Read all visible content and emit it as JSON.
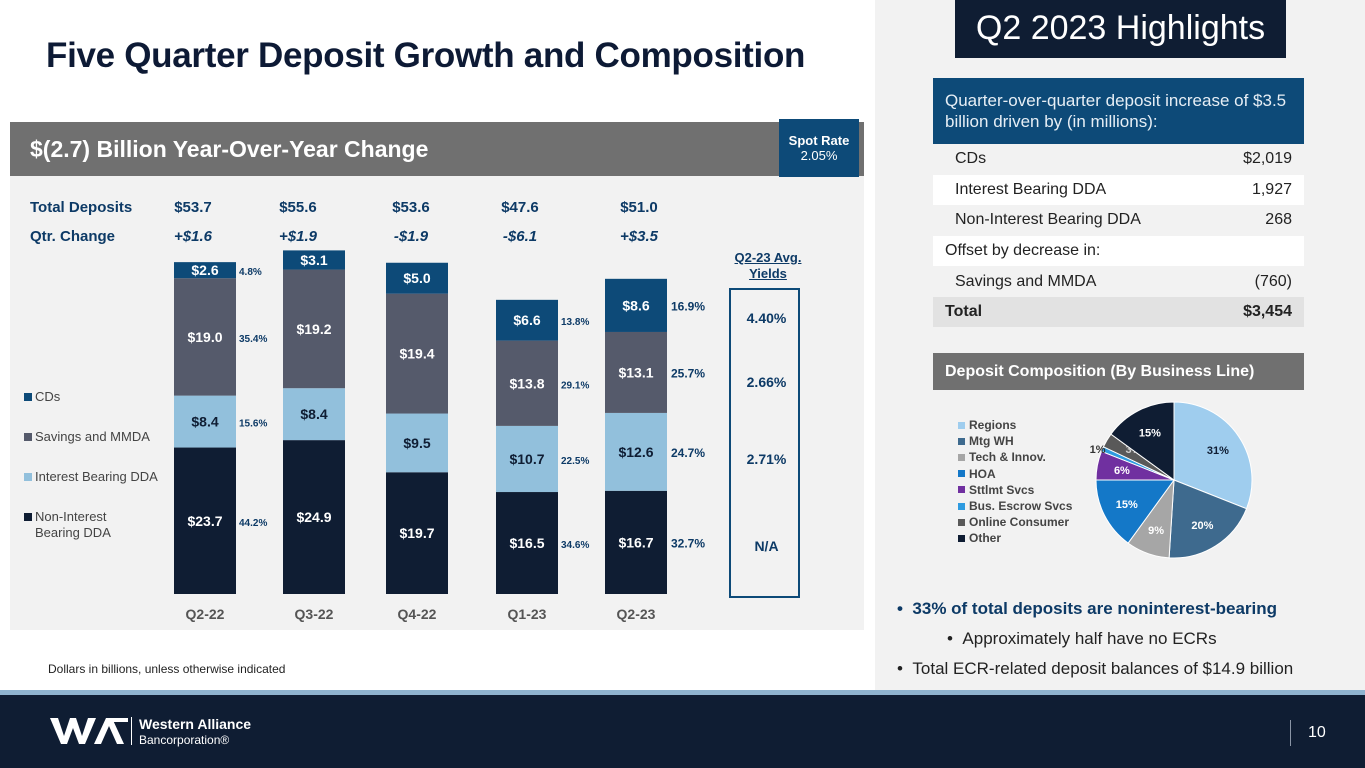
{
  "title": "Five Quarter Deposit Growth and Composition",
  "panel_header": "$(2.7) Billion Year-Over-Year Change",
  "spot_rate": {
    "label": "Spot Rate",
    "value": "2.05%"
  },
  "totals_row": {
    "label": "Total Deposits",
    "values": [
      "$53.7",
      "$55.6",
      "$53.6",
      "$47.6",
      "$51.0"
    ]
  },
  "change_row": {
    "label": "Qtr. Change",
    "values": [
      "+$1.6",
      "+$1.9",
      "-$1.9",
      "-$6.1",
      "+$3.5"
    ]
  },
  "chart_data": [
    {
      "type": "bar",
      "stacked": true,
      "categories": [
        "Q2-22",
        "Q3-22",
        "Q4-22",
        "Q1-23",
        "Q2-23"
      ],
      "series": [
        {
          "name": "Non-Interest Bearing DDA",
          "color": "#0f1d33",
          "values": [
            23.7,
            24.9,
            19.7,
            16.5,
            16.7
          ],
          "labels": [
            "$23.7",
            "$24.9",
            "$19.7",
            "$16.5",
            "$16.7"
          ],
          "pct": [
            "44.2%",
            "",
            "",
            "34.6%",
            "32.7%"
          ]
        },
        {
          "name": "Interest Bearing DDA",
          "color": "#92c0dc",
          "values": [
            8.4,
            8.4,
            9.5,
            10.7,
            12.6
          ],
          "labels": [
            "$8.4",
            "$8.4",
            "$9.5",
            "$10.7",
            "$12.6"
          ],
          "pct": [
            "15.6%",
            "",
            "",
            "22.5%",
            "24.7%"
          ]
        },
        {
          "name": "Savings and MMDA",
          "color": "#555a6b",
          "values": [
            19.0,
            19.2,
            19.4,
            13.8,
            13.1
          ],
          "labels": [
            "$19.0",
            "$19.2",
            "$19.4",
            "$13.8",
            "$13.1"
          ],
          "pct": [
            "35.4%",
            "",
            "",
            "29.1%",
            "25.7%"
          ]
        },
        {
          "name": "CDs",
          "color": "#0d4a78",
          "values": [
            2.6,
            3.1,
            5.0,
            6.6,
            8.6
          ],
          "labels": [
            "$2.6",
            "$3.1",
            "$5.0",
            "$6.6",
            "$8.6"
          ],
          "pct": [
            "4.8%",
            "",
            "",
            "13.8%",
            "16.9%"
          ]
        }
      ],
      "legend": [
        "CDs",
        "Savings and MMDA",
        "Interest Bearing DDA",
        "Non-Interest Bearing DDA"
      ],
      "ylim": [
        0,
        55
      ]
    },
    {
      "type": "pie",
      "title": "Deposit Composition (By Business Line)",
      "slices": [
        {
          "name": "Regions",
          "value": 31,
          "label": "31%",
          "color": "#9fcdee"
        },
        {
          "name": "Mtg WH",
          "value": 20,
          "label": "20%",
          "color": "#3e6a8e"
        },
        {
          "name": "Tech & Innov.",
          "value": 9,
          "label": "9%",
          "color": "#a6a6a6"
        },
        {
          "name": "HOA",
          "value": 15,
          "label": "15%",
          "color": "#1478c8"
        },
        {
          "name": "Sttlmt Svcs",
          "value": 6,
          "label": "6%",
          "color": "#7030a0"
        },
        {
          "name": "Bus. Escrow Svcs",
          "value": 1,
          "label": "1%",
          "color": "#2e9be0"
        },
        {
          "name": "Online Consumer",
          "value": 3,
          "label": "3%",
          "color": "#595959"
        },
        {
          "name": "Other",
          "value": 15,
          "label": "15%",
          "color": "#0f1d33"
        }
      ]
    }
  ],
  "yields": {
    "title_line1": "Q2-23 Avg.",
    "title_line2": "Yields",
    "values": [
      "4.40%",
      "2.66%",
      "2.71%",
      "N/A"
    ]
  },
  "footnote": "Dollars in billions, unless otherwise indicated",
  "highlights": {
    "title": "Q2 2023 Highlights",
    "subtitle": "Quarter-over-quarter deposit increase of $3.5 billion driven by (in millions):",
    "rows": [
      {
        "label": "CDs",
        "value": "$2,019"
      },
      {
        "label": "Interest Bearing DDA",
        "value": "1,927"
      },
      {
        "label": "Non-Interest Bearing DDA",
        "value": "268"
      },
      {
        "label": "Offset by decrease in:",
        "value": ""
      },
      {
        "label": "Savings and MMDA",
        "value": "(760)"
      },
      {
        "label": "Total",
        "value": "$3,454"
      }
    ]
  },
  "bullets": [
    "33% of total deposits are noninterest-bearing",
    "Approximately half have no ECRs",
    "Total ECR-related deposit balances of $14.9 billion"
  ],
  "bullet_marker": "•",
  "footer": {
    "company_line1": "Western Alliance",
    "company_line2": "Bancorporation®",
    "page": "10"
  }
}
